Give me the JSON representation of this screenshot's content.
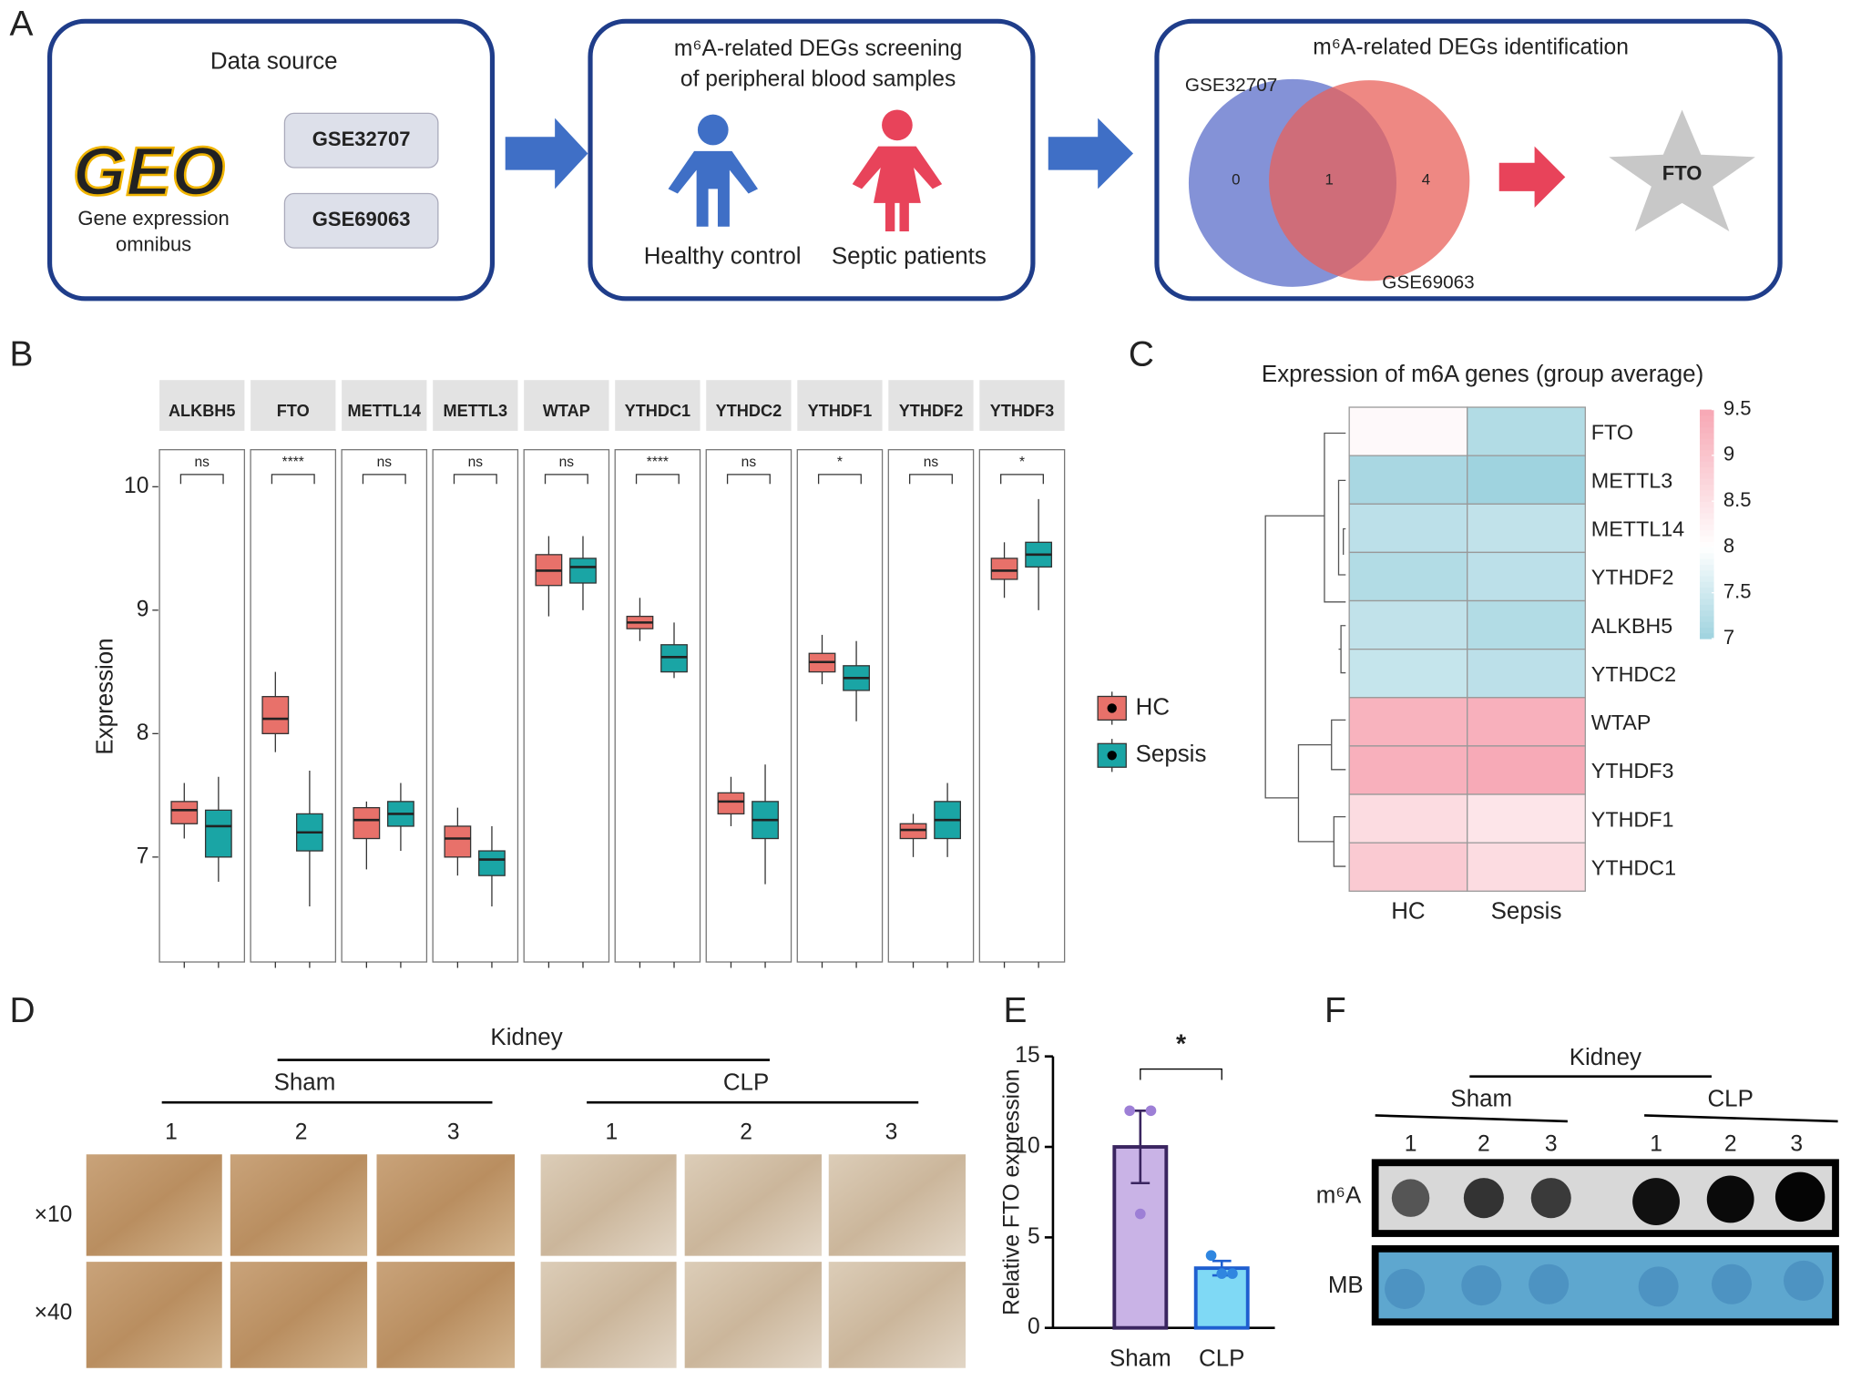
{
  "panel_labels": [
    "A",
    "B",
    "C",
    "D",
    "E",
    "F"
  ],
  "panel_a": {
    "source": {
      "title": "Data source",
      "logo": "GEO",
      "logo_caption": [
        "Gene expression",
        "omnibus"
      ],
      "datasets": [
        "GSE32707",
        "GSE69063"
      ]
    },
    "screening": {
      "title": [
        "m⁶A-related DEGs screening",
        "of peripheral blood samples"
      ],
      "groups": [
        "Healthy control",
        "Septic patients"
      ]
    },
    "identification": {
      "title": "m⁶A-related DEGs identification",
      "sets": [
        "GSE32707",
        "GSE69063"
      ],
      "counts": [
        0,
        1,
        4
      ],
      "result": "FTO"
    }
  },
  "chart_data": [
    {
      "type": "box",
      "ylabel": "Expression",
      "categories": [
        "ALKBH5",
        "FTO",
        "METTL14",
        "METTL3",
        "WTAP",
        "YTHDC1",
        "YTHDC2",
        "YTHDF1",
        "YTHDF2",
        "YTHDF3"
      ],
      "significance": [
        "ns",
        "****",
        "ns",
        "ns",
        "ns",
        "****",
        "ns",
        "*",
        "ns",
        "*"
      ],
      "ylim": [
        6.15,
        10.3
      ],
      "yticks": [
        7,
        8,
        9,
        10
      ],
      "series": [
        {
          "name": "HC",
          "color": "#e8716a",
          "low": [
            7.15,
            7.85,
            6.9,
            6.85,
            8.95,
            8.75,
            7.25,
            8.4,
            7.0,
            9.1
          ],
          "q1": [
            7.27,
            8.0,
            7.15,
            7.0,
            9.2,
            8.85,
            7.35,
            8.5,
            7.15,
            9.25
          ],
          "median": [
            7.38,
            8.12,
            7.3,
            7.15,
            9.32,
            8.9,
            7.45,
            8.58,
            7.22,
            9.32
          ],
          "q3": [
            7.45,
            8.3,
            7.4,
            7.25,
            9.45,
            8.95,
            7.52,
            8.65,
            7.27,
            9.42
          ],
          "high": [
            7.6,
            8.5,
            7.45,
            7.4,
            9.6,
            9.1,
            7.65,
            8.8,
            7.35,
            9.55
          ]
        },
        {
          "name": "Sepsis",
          "color": "#1aa5a5",
          "low": [
            6.8,
            6.6,
            7.05,
            6.6,
            9.0,
            8.45,
            6.78,
            8.1,
            7.0,
            9.0
          ],
          "q1": [
            7.0,
            7.05,
            7.25,
            6.85,
            9.22,
            8.5,
            7.15,
            8.35,
            7.15,
            9.35
          ],
          "median": [
            7.25,
            7.2,
            7.35,
            6.98,
            9.35,
            8.62,
            7.3,
            8.45,
            7.3,
            9.45
          ],
          "q3": [
            7.38,
            7.35,
            7.45,
            7.05,
            9.42,
            8.72,
            7.45,
            8.55,
            7.45,
            9.55
          ],
          "high": [
            7.65,
            7.7,
            7.6,
            7.25,
            9.6,
            8.9,
            7.75,
            8.75,
            7.6,
            9.9
          ]
        }
      ]
    },
    {
      "type": "heatmap",
      "title": "Expression of m6A genes (group average)",
      "columns": [
        "HC",
        "Sepsis"
      ],
      "rows": [
        "FTO",
        "METTL3",
        "METTL14",
        "YTHDF2",
        "ALKBH5",
        "YTHDC2",
        "WTAP",
        "YTHDF3",
        "YTHDF1",
        "YTHDC1"
      ],
      "values": [
        [
          8.1,
          7.2
        ],
        [
          7.1,
          7.0
        ],
        [
          7.3,
          7.35
        ],
        [
          7.2,
          7.3
        ],
        [
          7.35,
          7.2
        ],
        [
          7.4,
          7.3
        ],
        [
          9.3,
          9.35
        ],
        [
          9.35,
          9.45
        ],
        [
          8.6,
          8.45
        ],
        [
          8.9,
          8.6
        ]
      ],
      "highlight": {
        "row": 0,
        "color": "#e53935"
      },
      "colorscale": {
        "low": "#9fd3df",
        "mid": "#ffffff",
        "high": "#f7a7b4",
        "range": [
          7,
          9.5
        ],
        "mid_value": 8
      },
      "ticks": [
        7,
        7.5,
        8,
        8.5,
        9,
        9.5
      ]
    },
    {
      "type": "bar",
      "ylabel": "Relative FTO expression",
      "categories": [
        "Sham",
        "CLP"
      ],
      "values": [
        10,
        3.3
      ],
      "errors": [
        2,
        0.4
      ],
      "points": [
        [
          12,
          12,
          6.3
        ],
        [
          4,
          3,
          3
        ]
      ],
      "colors": [
        "#c9b3e6",
        "#7fd9f5"
      ],
      "edge_colors": [
        "#3a2560",
        "#1f5fd0"
      ],
      "significance": "*",
      "ylim": [
        0,
        15
      ],
      "yticks": [
        0,
        5,
        10,
        15
      ]
    }
  ],
  "panel_d": {
    "tissue": "Kidney",
    "groups": [
      "Sham",
      "CLP"
    ],
    "replicates": [
      1,
      2,
      3,
      1,
      2,
      3
    ],
    "magnifications": [
      "×10",
      "×40"
    ]
  },
  "panel_f": {
    "tissue": "Kidney",
    "groups": [
      "Sham",
      "CLP"
    ],
    "replicates": [
      1,
      2,
      3,
      1,
      2,
      3
    ],
    "rows": [
      "m⁶A",
      "MB"
    ]
  }
}
